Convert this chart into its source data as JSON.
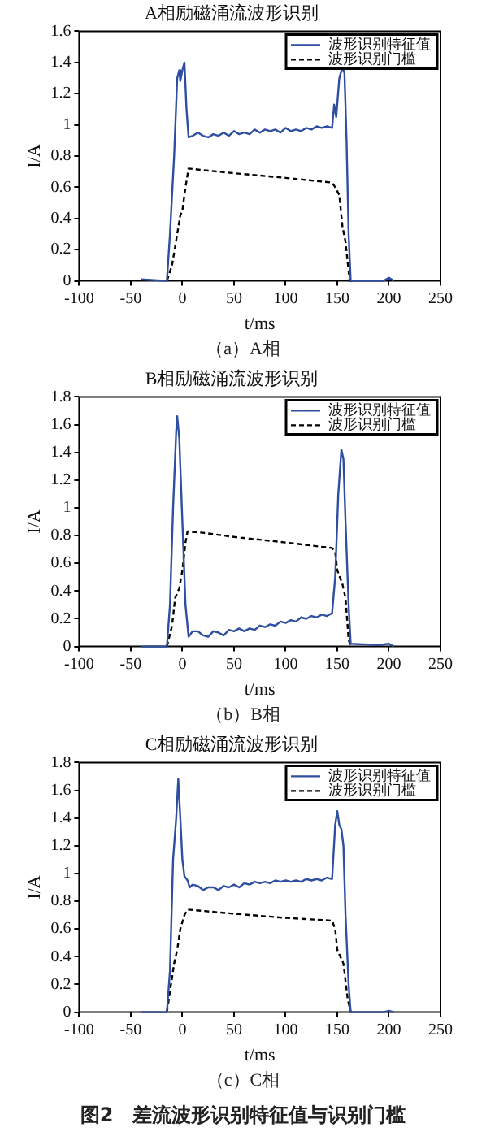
{
  "chart_data": [
    {
      "type": "line",
      "title": "A相励磁涌流波形识别",
      "xlabel": "t/ms",
      "ylabel": "I/A",
      "xlim": [
        -100,
        250
      ],
      "xticks": [
        -100,
        -50,
        0,
        50,
        100,
        150,
        200,
        250
      ],
      "ylim": [
        0,
        1.6
      ],
      "yticks": [
        0,
        0.2,
        0.4,
        0.6,
        0.8,
        1,
        1.2,
        1.4,
        1.6
      ],
      "grid": false,
      "legend": "top right",
      "marker": "none",
      "annotations": [
        "（a）A相"
      ],
      "series": [
        {
          "name": "波形识别特征值",
          "color": "#2e4fa0",
          "line_style": "solid",
          "x": [
            -40,
            -15,
            -12,
            -8,
            -5,
            -3,
            -2,
            0,
            2,
            4,
            6,
            10,
            15,
            20,
            25,
            30,
            35,
            40,
            45,
            50,
            55,
            60,
            65,
            70,
            75,
            80,
            85,
            90,
            95,
            100,
            105,
            110,
            115,
            120,
            125,
            130,
            135,
            140,
            145,
            147,
            149,
            152,
            155,
            157,
            159,
            161,
            163,
            195,
            200,
            205
          ],
          "values": [
            0.01,
            0,
            0.3,
            0.8,
            1.3,
            1.35,
            1.28,
            1.35,
            1.4,
            1.1,
            0.92,
            0.93,
            0.95,
            0.93,
            0.92,
            0.94,
            0.93,
            0.95,
            0.93,
            0.96,
            0.94,
            0.95,
            0.94,
            0.97,
            0.95,
            0.97,
            0.96,
            0.97,
            0.95,
            0.98,
            0.96,
            0.97,
            0.96,
            0.98,
            0.97,
            0.99,
            0.98,
            0.99,
            0.98,
            1.13,
            1.05,
            1.3,
            1.37,
            1.33,
            0.9,
            0.3,
            0,
            0,
            0.02,
            0
          ]
        },
        {
          "name": "波形识别门槛",
          "color": "#000000",
          "line_style": "dashed",
          "x": [
            -15,
            -10,
            -5,
            -2,
            0,
            3,
            6,
            20,
            50,
            100,
            145,
            148,
            152,
            155,
            158,
            162,
            165
          ],
          "values": [
            0,
            0.1,
            0.3,
            0.42,
            0.45,
            0.6,
            0.72,
            0.71,
            0.69,
            0.66,
            0.63,
            0.6,
            0.55,
            0.35,
            0.25,
            0,
            0
          ]
        }
      ]
    },
    {
      "type": "line",
      "title": "B相励磁涌流波形识别",
      "xlabel": "t/ms",
      "ylabel": "I/A",
      "xlim": [
        -100,
        250
      ],
      "xticks": [
        -100,
        -50,
        0,
        50,
        100,
        150,
        200,
        250
      ],
      "ylim": [
        0,
        1.8
      ],
      "yticks": [
        0,
        0.2,
        0.4,
        0.6,
        0.8,
        1,
        1.2,
        1.4,
        1.6,
        1.8
      ],
      "grid": false,
      "legend": "top right",
      "marker": "none",
      "annotations": [
        "（b）B相"
      ],
      "series": [
        {
          "name": "波形识别特征值",
          "color": "#2e4fa0",
          "line_style": "solid",
          "x": [
            -40,
            -15,
            -12,
            -9,
            -6,
            -5,
            -3,
            0,
            3,
            6,
            10,
            15,
            20,
            25,
            30,
            35,
            40,
            45,
            50,
            55,
            60,
            65,
            70,
            75,
            80,
            85,
            90,
            95,
            100,
            105,
            110,
            115,
            120,
            125,
            130,
            135,
            140,
            145,
            148,
            151,
            154,
            156,
            158,
            161,
            163,
            190,
            200,
            205
          ],
          "values": [
            0,
            0,
            0.3,
            1.0,
            1.55,
            1.66,
            1.5,
            0.9,
            0.3,
            0.07,
            0.11,
            0.11,
            0.08,
            0.07,
            0.11,
            0.1,
            0.08,
            0.12,
            0.11,
            0.13,
            0.11,
            0.13,
            0.12,
            0.15,
            0.14,
            0.16,
            0.15,
            0.18,
            0.17,
            0.19,
            0.18,
            0.21,
            0.2,
            0.22,
            0.21,
            0.23,
            0.22,
            0.24,
            0.5,
            1.1,
            1.42,
            1.35,
            0.9,
            0.3,
            0.02,
            0.01,
            0.02,
            0
          ]
        },
        {
          "name": "波形识别门槛",
          "color": "#000000",
          "line_style": "dashed",
          "x": [
            -15,
            -10,
            -7,
            -3,
            0,
            3,
            5,
            20,
            50,
            100,
            145,
            148,
            150,
            155,
            158,
            161,
            163
          ],
          "values": [
            0,
            0.15,
            0.35,
            0.42,
            0.55,
            0.75,
            0.83,
            0.82,
            0.79,
            0.75,
            0.71,
            0.68,
            0.55,
            0.45,
            0.35,
            0.05,
            0
          ]
        }
      ]
    },
    {
      "type": "line",
      "title": "C相励磁涌流波形识别",
      "xlabel": "t/ms",
      "ylabel": "I/A",
      "xlim": [
        -100,
        250
      ],
      "xticks": [
        -100,
        -50,
        0,
        50,
        100,
        150,
        200,
        250
      ],
      "ylim": [
        0,
        1.8
      ],
      "yticks": [
        0,
        0.2,
        0.4,
        0.6,
        0.8,
        1,
        1.2,
        1.4,
        1.6,
        1.8
      ],
      "grid": false,
      "legend": "top right",
      "marker": "none",
      "annotations": [
        "（c）C相",
        "图2　差流波形识别特征值与识别门槛"
      ],
      "series": [
        {
          "name": "波形识别特征值",
          "color": "#2e4fa0",
          "line_style": "solid",
          "x": [
            -40,
            -15,
            -12,
            -9,
            -6,
            -4,
            -2,
            0,
            2,
            5,
            7,
            10,
            15,
            20,
            25,
            30,
            35,
            40,
            45,
            50,
            55,
            60,
            65,
            70,
            75,
            80,
            85,
            90,
            95,
            100,
            105,
            110,
            115,
            120,
            125,
            130,
            135,
            140,
            145,
            148,
            150,
            152,
            154,
            156,
            158,
            161,
            163,
            195,
            200,
            205
          ],
          "values": [
            0,
            0,
            0.3,
            1.1,
            1.4,
            1.68,
            1.4,
            1.1,
            0.98,
            0.95,
            0.9,
            0.92,
            0.91,
            0.88,
            0.9,
            0.9,
            0.88,
            0.91,
            0.9,
            0.92,
            0.9,
            0.93,
            0.92,
            0.94,
            0.93,
            0.94,
            0.93,
            0.95,
            0.94,
            0.95,
            0.94,
            0.95,
            0.94,
            0.96,
            0.95,
            0.96,
            0.95,
            0.97,
            0.96,
            1.35,
            1.45,
            1.35,
            1.32,
            1.2,
            0.7,
            0.2,
            0,
            0,
            0.01,
            0
          ]
        },
        {
          "name": "波形识别门槛",
          "color": "#000000",
          "line_style": "dashed",
          "x": [
            -15,
            -12,
            -8,
            -5,
            -2,
            2,
            5,
            20,
            50,
            100,
            145,
            148,
            150,
            153,
            156,
            160,
            163
          ],
          "values": [
            0,
            0.15,
            0.35,
            0.45,
            0.6,
            0.7,
            0.74,
            0.73,
            0.71,
            0.68,
            0.66,
            0.6,
            0.45,
            0.4,
            0.35,
            0.1,
            0
          ]
        }
      ]
    }
  ]
}
